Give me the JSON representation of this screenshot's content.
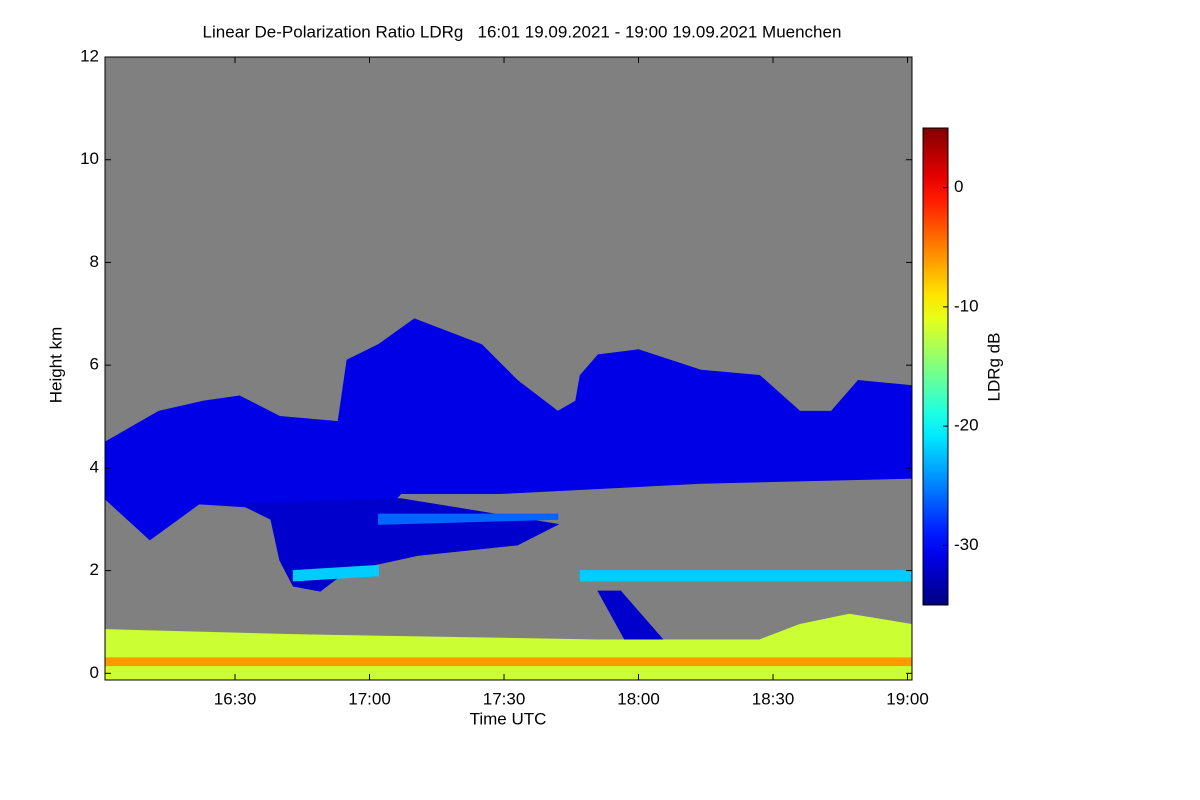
{
  "chart_data": {
    "type": "heatmap",
    "title": "Linear De-Polarization Ratio LDRg   16:01 19.09.2021 - 19:00 19.09.2021 Muenchen",
    "x_label": "Time UTC",
    "y_label": "Height km",
    "colorbar_label": "LDRg dB",
    "colormap": "jet",
    "background_color": "#808080",
    "xlim": [
      961,
      1141
    ],
    "xticks": [
      {
        "value": 990,
        "label": "16:30"
      },
      {
        "value": 1020,
        "label": "17:00"
      },
      {
        "value": 1050,
        "label": "17:30"
      },
      {
        "value": 1080,
        "label": "18:00"
      },
      {
        "value": 1110,
        "label": "18:30"
      },
      {
        "value": 1140,
        "label": "19:00"
      }
    ],
    "ylim": [
      -0.13,
      12
    ],
    "yticks": [
      0,
      2,
      4,
      6,
      8,
      10,
      12
    ],
    "clim": [
      -35,
      5
    ],
    "cticks": [
      -30,
      -20,
      -10,
      0
    ],
    "regions": [
      {
        "value": -31,
        "outline": [
          [
            961,
            4.5
          ],
          [
            973,
            5.1
          ],
          [
            983,
            5.3
          ],
          [
            991,
            5.4
          ],
          [
            1000,
            5.0
          ],
          [
            1013,
            4.9
          ],
          [
            1015,
            6.1
          ],
          [
            1022,
            6.4
          ],
          [
            1030,
            6.9
          ],
          [
            1036,
            6.7
          ],
          [
            1045,
            6.4
          ],
          [
            1053,
            5.7
          ],
          [
            1062,
            5.1
          ],
          [
            1066,
            5.3
          ],
          [
            1067,
            5.8
          ],
          [
            1071,
            6.2
          ],
          [
            1080,
            6.3
          ],
          [
            1094,
            5.9
          ],
          [
            1107,
            5.8
          ],
          [
            1116,
            5.1
          ],
          [
            1123,
            5.1
          ],
          [
            1129,
            5.7
          ],
          [
            1141,
            5.6
          ],
          [
            1141,
            3.8
          ],
          [
            1094,
            3.7
          ],
          [
            1049,
            3.5
          ],
          [
            1027,
            3.5
          ],
          [
            1022,
            3.0
          ],
          [
            1000,
            3.2
          ],
          [
            982,
            3.3
          ],
          [
            971,
            2.6
          ],
          [
            961,
            3.4
          ]
        ]
      },
      {
        "value": -32,
        "outline": [
          [
            991,
            3.3
          ],
          [
            1027,
            3.4
          ],
          [
            1062,
            2.9
          ],
          [
            1053,
            2.5
          ],
          [
            1031,
            2.3
          ],
          [
            1015,
            2.0
          ],
          [
            1009,
            1.6
          ],
          [
            1003,
            1.7
          ],
          [
            1000,
            2.2
          ],
          [
            998,
            3.0
          ]
        ]
      },
      {
        "value": -26,
        "outline": [
          [
            1022,
            2.9
          ],
          [
            1062,
            3.0
          ],
          [
            1062,
            3.1
          ],
          [
            1022,
            3.1
          ]
        ]
      },
      {
        "value": -22,
        "outline": [
          [
            1003,
            1.8
          ],
          [
            1022,
            1.9
          ],
          [
            1022,
            2.1
          ],
          [
            1003,
            2.0
          ]
        ]
      },
      {
        "value": -22,
        "outline": [
          [
            1067,
            1.8
          ],
          [
            1141,
            1.8
          ],
          [
            1141,
            2.0
          ],
          [
            1067,
            2.0
          ]
        ]
      },
      {
        "value": -32,
        "outline": [
          [
            1071,
            1.6
          ],
          [
            1076,
            1.6
          ],
          [
            1086,
            0.6
          ],
          [
            1077,
            0.65
          ]
        ]
      },
      {
        "value": -12,
        "outline": [
          [
            961,
            0.85
          ],
          [
            1004,
            0.75
          ],
          [
            1071,
            0.65
          ],
          [
            1107,
            0.65
          ],
          [
            1116,
            0.95
          ],
          [
            1127,
            1.15
          ],
          [
            1141,
            0.95
          ],
          [
            1141,
            -0.13
          ],
          [
            961,
            -0.13
          ]
        ]
      },
      {
        "value": -6,
        "outline": [
          [
            961,
            0.15
          ],
          [
            1141,
            0.15
          ],
          [
            1141,
            0.3
          ],
          [
            961,
            0.3
          ]
        ]
      }
    ]
  }
}
